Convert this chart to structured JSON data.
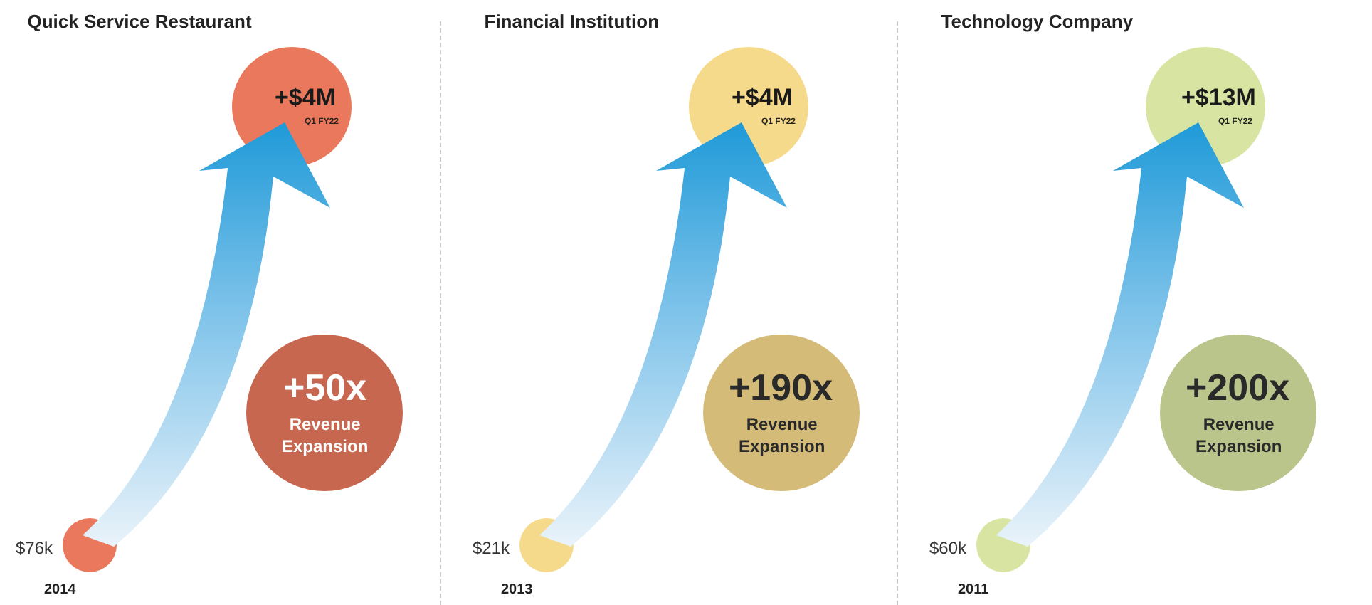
{
  "chart_data": [
    {
      "type": "other",
      "title": "Quick Service Restaurant",
      "categories": [
        "2014",
        "Q1 FY22"
      ],
      "values": [
        76000,
        4000000
      ],
      "value_labels": [
        "$76k",
        "+$4M"
      ],
      "colors": [
        "#e9785c",
        "#e9785c"
      ],
      "annotations": [
        "+50x",
        "Revenue Expansion"
      ]
    },
    {
      "type": "other",
      "title": "Financial Institution",
      "categories": [
        "2013",
        "Q1 FY22"
      ],
      "values": [
        21000,
        4000000
      ],
      "value_labels": [
        "$21k",
        "+$4M"
      ],
      "colors": [
        "#f6da8c",
        "#f6da8c"
      ],
      "annotations": [
        "+190x",
        "Revenue Expansion"
      ]
    },
    {
      "type": "other",
      "title": "Technology Company",
      "categories": [
        "2011",
        "Q1 FY22"
      ],
      "values": [
        60000,
        13000000
      ],
      "value_labels": [
        "$60k",
        "+$13M"
      ],
      "colors": [
        "#d8e5a2",
        "#d8e5a2"
      ],
      "annotations": [
        "+200x",
        "Revenue Expansion"
      ]
    }
  ]
}
